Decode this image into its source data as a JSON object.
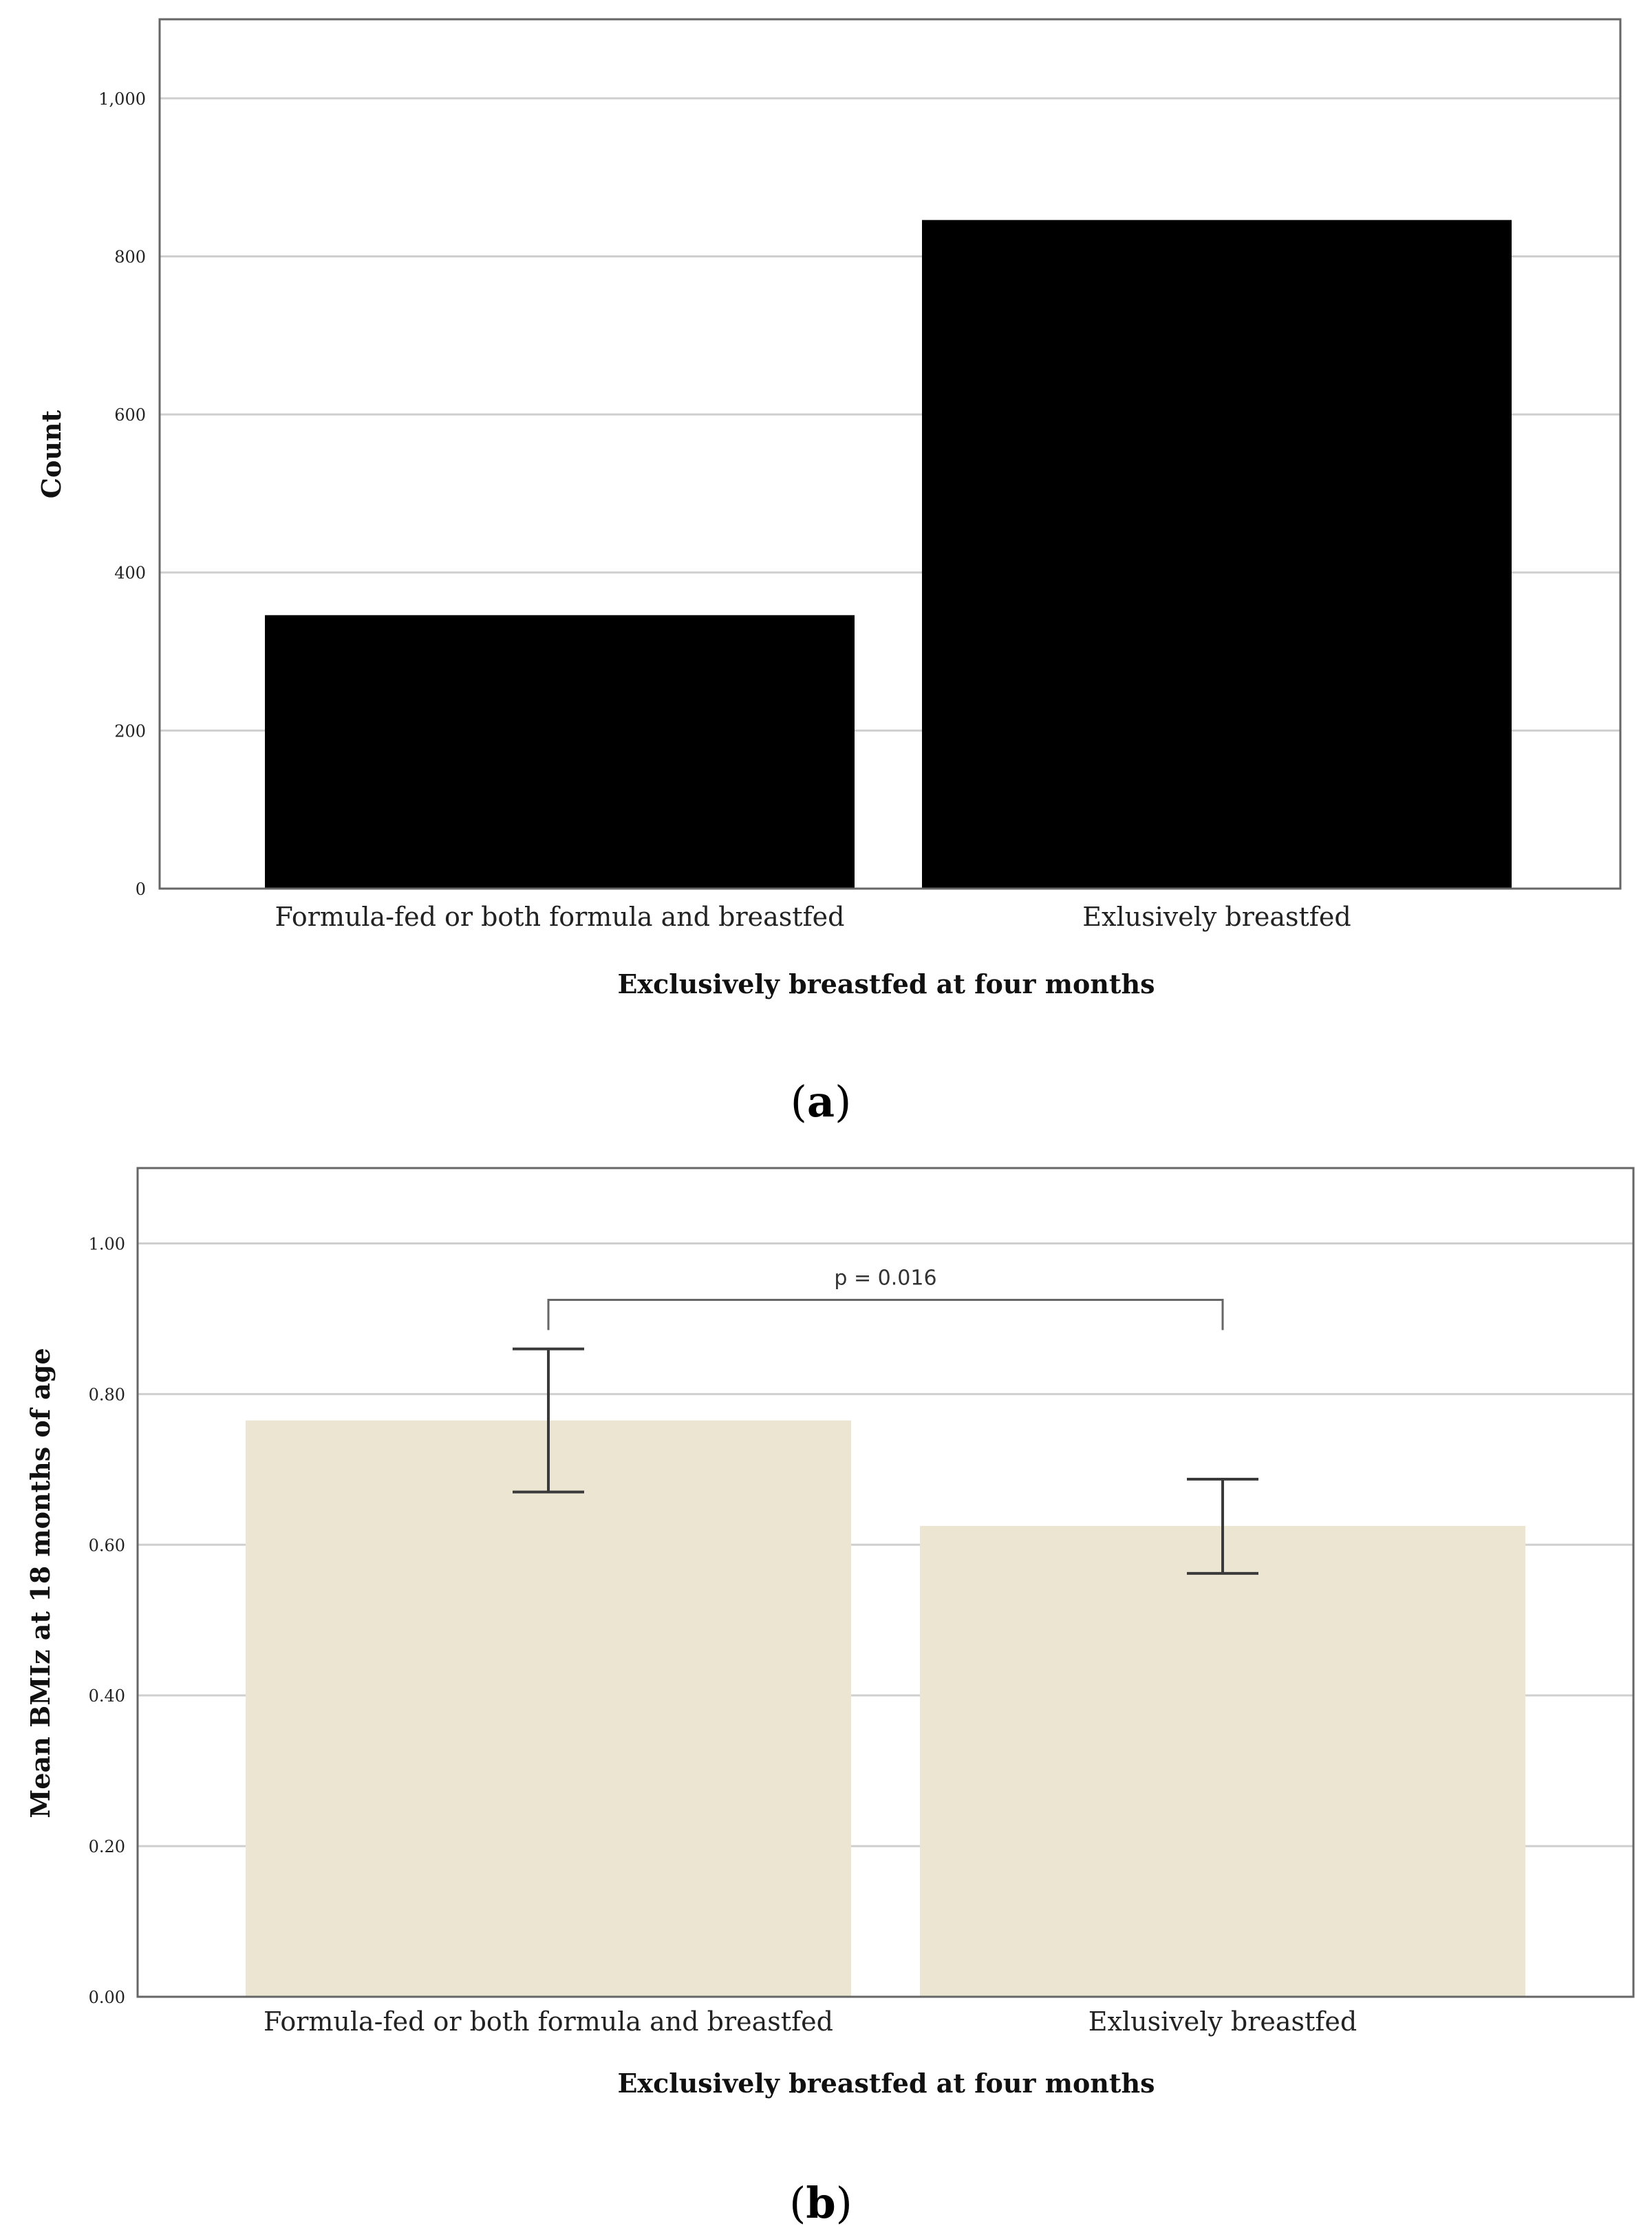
{
  "chart_data": [
    {
      "type": "bar",
      "panel_label": "a",
      "categories": [
        "Formula-fed or both formula and breastfed",
        "Exlusively breastfed"
      ],
      "values": [
        346,
        846
      ],
      "xlabel": "Exclusively breastfed at four months",
      "ylabel": "Count",
      "ylim": [
        0,
        1100
      ],
      "yticks": [
        0,
        200,
        400,
        600,
        800,
        1000
      ],
      "ytick_labels": [
        "0",
        "200",
        "400",
        "600",
        "800",
        "1,000"
      ],
      "grid": true,
      "bar_color": "#000000"
    },
    {
      "type": "bar",
      "panel_label": "b",
      "categories": [
        "Formula-fed or both formula and breastfed",
        "Exlusively breastfed"
      ],
      "values": [
        0.765,
        0.625
      ],
      "error_bars": [
        [
          0.67,
          0.86
        ],
        [
          0.562,
          0.687
        ]
      ],
      "xlabel": "Exclusively breastfed at four months",
      "ylabel": "Mean BMIz at 18 months of age",
      "ylim": [
        0,
        1.1
      ],
      "yticks": [
        0,
        0.2,
        0.4,
        0.6,
        0.8,
        1.0
      ],
      "ytick_labels": [
        "0.00",
        "0.20",
        "0.40",
        "0.60",
        "0.80",
        "1.00"
      ],
      "grid": true,
      "bar_color": "#ece5d1",
      "annotation": "p = 0.016"
    }
  ]
}
